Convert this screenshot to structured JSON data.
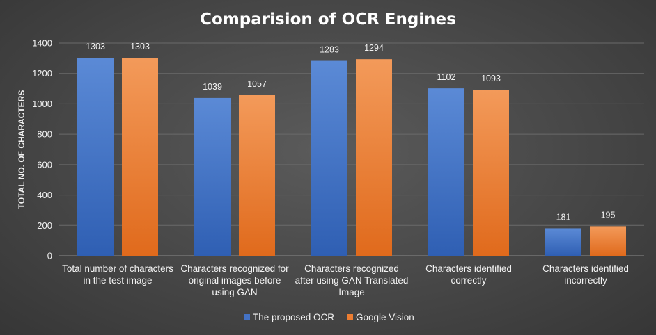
{
  "chart_data": {
    "type": "bar",
    "title": "Comparision of OCR Engines",
    "xlabel": "",
    "ylabel": "TOTAL NO. OF CHARACTERS",
    "ylim": [
      0,
      1400
    ],
    "yticks": [
      0,
      200,
      400,
      600,
      800,
      1000,
      1200,
      1400
    ],
    "grid": true,
    "legend_position": "bottom",
    "categories": [
      [
        "Total number of characters",
        "in the test image"
      ],
      [
        "Characters recognized for",
        "original images before",
        "using GAN"
      ],
      [
        "Characters recognized",
        "after using GAN Translated",
        "Image"
      ],
      [
        "Characters identified",
        "correctly"
      ],
      [
        "Characters identified",
        "incorrectly"
      ]
    ],
    "series": [
      {
        "name": "The proposed OCR",
        "color": "#4472c4",
        "values": [
          1303,
          1039,
          1283,
          1102,
          181
        ]
      },
      {
        "name": "Google Vision",
        "color": "#ed7d31",
        "values": [
          1303,
          1057,
          1294,
          1093,
          195
        ]
      }
    ]
  }
}
